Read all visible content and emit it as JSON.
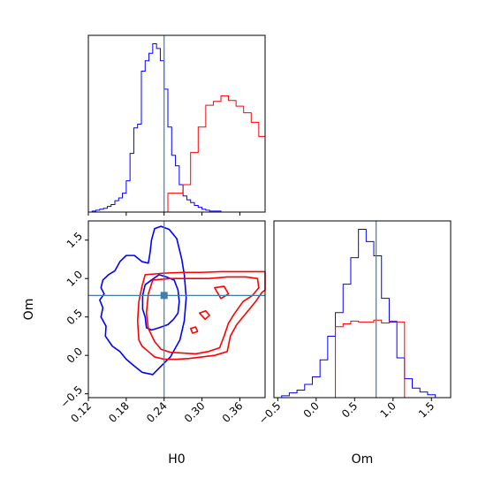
{
  "chart_data": {
    "type": "corner",
    "parameters": [
      "H0",
      "Om"
    ],
    "truth": {
      "H0": 0.24,
      "Om": 0.78
    },
    "colors": {
      "series_a": "#0000ff",
      "series_b": "#ff0000",
      "truth": "#3f7fad",
      "axes": "#000000"
    },
    "panels": [
      {
        "id": "H0-marginal",
        "type": "histogram",
        "x_param": "H0",
        "xlim": [
          0.12,
          0.4
        ],
        "bin_edges": [
          0.12,
          0.126,
          0.132,
          0.138,
          0.144,
          0.15,
          0.156,
          0.162,
          0.168,
          0.174,
          0.18,
          0.186,
          0.192,
          0.198,
          0.204,
          0.21,
          0.216,
          0.222,
          0.228,
          0.234,
          0.24,
          0.246,
          0.252,
          0.258,
          0.264,
          0.27,
          0.276,
          0.282,
          0.288,
          0.294,
          0.3,
          0.306,
          0.312,
          0.318,
          0.324,
          0.33,
          0.336,
          0.342,
          0.348,
          0.354,
          0.36,
          0.366,
          0.372,
          0.378,
          0.384,
          0.39,
          0.396,
          0.4
        ],
        "series": [
          {
            "color": "#0000ff",
            "counts": [
              0,
              1,
              2,
              3,
              4,
              6,
              8,
              12,
              15,
              20,
              33,
              62,
              89,
              93,
              149,
              160,
              168,
              178,
              173,
              160,
              130,
              90,
              60,
              49,
              29,
              17,
              13,
              10,
              7,
              5,
              3,
              2,
              1,
              1,
              1,
              0,
              0,
              0,
              0,
              0,
              0,
              0,
              0,
              0,
              0,
              0,
              0
            ]
          },
          {
            "color": "#ff0000",
            "counts": [
              0,
              0,
              0,
              0,
              0,
              0,
              0,
              0,
              0,
              0,
              0,
              0,
              0,
              0,
              0,
              0,
              0,
              0,
              0,
              0,
              0,
              20,
              20,
              20,
              20,
              29,
              29,
              63,
              63,
              90,
              90,
              113,
              113,
              117,
              117,
              123,
              123,
              118,
              118,
              112,
              112,
              105,
              105,
              95,
              95,
              80,
              80
            ]
          }
        ]
      },
      {
        "id": "Om-marginal",
        "type": "histogram",
        "x_param": "Om",
        "xlim": [
          -0.55,
          1.75
        ],
        "bin_edges": [
          -0.55,
          -0.45,
          -0.35,
          -0.25,
          -0.15,
          -0.05,
          0.05,
          0.15,
          0.25,
          0.35,
          0.45,
          0.55,
          0.65,
          0.75,
          0.85,
          0.95,
          1.05,
          1.15,
          1.25,
          1.35,
          1.45,
          1.55,
          1.65,
          1.75
        ],
        "series": [
          {
            "color": "#0000ff",
            "counts": [
              0,
              2,
              5,
              8,
              14,
              22,
              40,
              65,
              90,
              120,
              148,
              178,
              165,
              150,
              105,
              80,
              42,
              20,
              10,
              6,
              3,
              0,
              0
            ]
          },
          {
            "color": "#ff0000",
            "counts": [
              0,
              0,
              0,
              0,
              0,
              0,
              0,
              0,
              75,
              78,
              81,
              80,
              80,
              82,
              79,
              81,
              80,
              0,
              0,
              0,
              0,
              0,
              0
            ]
          }
        ]
      },
      {
        "id": "Om-vs-H0-contours",
        "type": "contour",
        "x_param": "H0",
        "y_param": "Om",
        "xlim": [
          0.12,
          0.4
        ],
        "ylim": [
          -0.55,
          1.75
        ],
        "series": [
          {
            "color": "#0000ff",
            "levels": [
              [
                [
                  0.225,
                  1.65
                ],
                [
                  0.235,
                  1.68
                ],
                [
                  0.248,
                  1.64
                ],
                [
                  0.26,
                  1.52
                ],
                [
                  0.268,
                  1.25
                ],
                [
                  0.272,
                  1.05
                ],
                [
                  0.275,
                  0.75
                ],
                [
                  0.272,
                  0.45
                ],
                [
                  0.265,
                  0.2
                ],
                [
                  0.25,
                  -0.02
                ],
                [
                  0.234,
                  -0.15
                ],
                [
                  0.222,
                  -0.25
                ],
                [
                  0.205,
                  -0.22
                ],
                [
                  0.19,
                  -0.12
                ],
                [
                  0.18,
                  -0.05
                ],
                [
                  0.17,
                  0.05
                ],
                [
                  0.158,
                  0.12
                ],
                [
                  0.147,
                  0.25
                ],
                [
                  0.148,
                  0.38
                ],
                [
                  0.14,
                  0.5
                ],
                [
                  0.143,
                  0.62
                ],
                [
                  0.138,
                  0.72
                ],
                [
                  0.145,
                  0.8
                ],
                [
                  0.14,
                  0.88
                ],
                [
                  0.143,
                  0.98
                ],
                [
                  0.152,
                  1.05
                ],
                [
                  0.162,
                  1.1
                ],
                [
                  0.17,
                  1.22
                ],
                [
                  0.18,
                  1.3
                ],
                [
                  0.193,
                  1.3
                ],
                [
                  0.205,
                  1.22
                ],
                [
                  0.215,
                  1.2
                ],
                [
                  0.218,
                  1.35
                ],
                [
                  0.22,
                  1.5
                ],
                [
                  0.225,
                  1.65
                ]
              ],
              [
                [
                  0.232,
                  1.05
                ],
                [
                  0.244,
                  1.02
                ],
                [
                  0.256,
                  0.98
                ],
                [
                  0.262,
                  0.85
                ],
                [
                  0.264,
                  0.7
                ],
                [
                  0.262,
                  0.55
                ],
                [
                  0.255,
                  0.47
                ],
                [
                  0.246,
                  0.4
                ],
                [
                  0.232,
                  0.36
                ],
                [
                  0.22,
                  0.33
                ],
                [
                  0.212,
                  0.36
                ],
                [
                  0.21,
                  0.5
                ],
                [
                  0.206,
                  0.6
                ],
                [
                  0.206,
                  0.78
                ],
                [
                  0.21,
                  0.92
                ],
                [
                  0.22,
                  0.98
                ],
                [
                  0.232,
                  1.05
                ]
              ]
            ]
          },
          {
            "color": "#ff0000",
            "levels": [
              [
                [
                  0.21,
                  1.05
                ],
                [
                  0.24,
                  1.07
                ],
                [
                  0.27,
                  1.08
                ],
                [
                  0.3,
                  1.08
                ],
                [
                  0.33,
                  1.09
                ],
                [
                  0.36,
                  1.09
                ],
                [
                  0.39,
                  1.09
                ],
                [
                  0.4,
                  1.09
                ],
                [
                  0.4,
                  0.85
                ],
                [
                  0.395,
                  0.82
                ],
                [
                  0.385,
                  0.7
                ],
                [
                  0.37,
                  0.55
                ],
                [
                  0.355,
                  0.4
                ],
                [
                  0.345,
                  0.25
                ],
                [
                  0.34,
                  0.05
                ],
                [
                  0.32,
                  0.0
                ],
                [
                  0.3,
                  -0.02
                ],
                [
                  0.28,
                  -0.04
                ],
                [
                  0.26,
                  -0.05
                ],
                [
                  0.24,
                  -0.05
                ],
                [
                  0.225,
                  -0.02
                ],
                [
                  0.215,
                  0.05
                ],
                [
                  0.205,
                  0.12
                ],
                [
                  0.2,
                  0.2
                ],
                [
                  0.198,
                  0.45
                ],
                [
                  0.2,
                  0.7
                ],
                [
                  0.205,
                  0.9
                ],
                [
                  0.21,
                  1.05
                ]
              ],
              [
                [
                  0.222,
                  0.98
                ],
                [
                  0.25,
                  1.0
                ],
                [
                  0.28,
                  1.0
                ],
                [
                  0.31,
                  1.0
                ],
                [
                  0.34,
                  1.02
                ],
                [
                  0.37,
                  1.02
                ],
                [
                  0.388,
                  1.0
                ],
                [
                  0.39,
                  0.88
                ],
                [
                  0.38,
                  0.78
                ],
                [
                  0.365,
                  0.7
                ],
                [
                  0.352,
                  0.55
                ],
                [
                  0.342,
                  0.42
                ],
                [
                  0.335,
                  0.25
                ],
                [
                  0.328,
                  0.1
                ],
                [
                  0.31,
                  0.05
                ],
                [
                  0.29,
                  0.02
                ],
                [
                  0.27,
                  0.03
                ],
                [
                  0.25,
                  0.04
                ],
                [
                  0.235,
                  0.08
                ],
                [
                  0.225,
                  0.18
                ],
                [
                  0.215,
                  0.35
                ],
                [
                  0.212,
                  0.55
                ],
                [
                  0.215,
                  0.8
                ],
                [
                  0.222,
                  0.98
                ]
              ],
              [
                [
                  0.296,
                  0.55
                ],
                [
                  0.306,
                  0.58
                ],
                [
                  0.312,
                  0.52
                ],
                [
                  0.305,
                  0.47
                ],
                [
                  0.296,
                  0.55
                ]
              ],
              [
                [
                  0.32,
                  0.88
                ],
                [
                  0.335,
                  0.9
                ],
                [
                  0.342,
                  0.8
                ],
                [
                  0.33,
                  0.74
                ],
                [
                  0.32,
                  0.88
                ]
              ],
              [
                [
                  0.282,
                  0.35
                ],
                [
                  0.29,
                  0.37
                ],
                [
                  0.293,
                  0.31
                ],
                [
                  0.285,
                  0.29
                ],
                [
                  0.282,
                  0.35
                ]
              ]
            ]
          }
        ]
      }
    ],
    "axes": {
      "H0": {
        "label": "H0",
        "ticks": [
          0.12,
          0.18,
          0.24,
          0.3,
          0.36
        ],
        "tick_labels": [
          "0.12",
          "0.18",
          "0.24",
          "0.30",
          "0.36"
        ]
      },
      "Om": {
        "label": "Om",
        "ticks": [
          -0.5,
          0.0,
          0.5,
          1.0,
          1.5
        ],
        "tick_labels": [
          "−0.5",
          "0.0",
          "0.5",
          "1.0",
          "1.5"
        ]
      }
    }
  }
}
